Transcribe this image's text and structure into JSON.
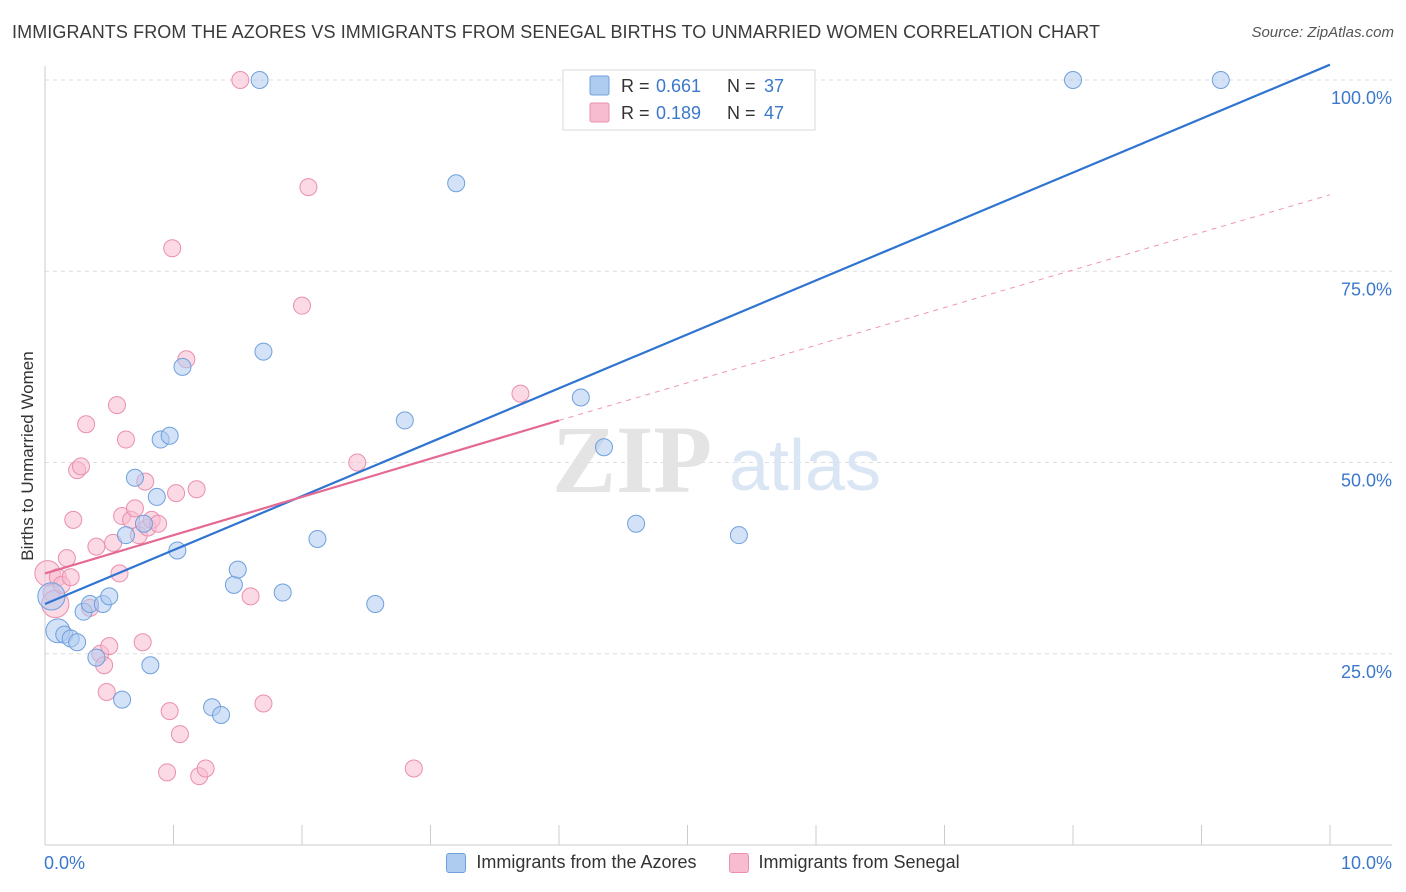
{
  "title": "IMMIGRANTS FROM THE AZORES VS IMMIGRANTS FROM SENEGAL BIRTHS TO UNMARRIED WOMEN CORRELATION CHART",
  "source": "Source: ZipAtlas.com",
  "watermark": {
    "zip": "ZIP",
    "atlas": "atlas"
  },
  "colors": {
    "blue_fill": "#aecbf0",
    "blue_stroke": "#6fa0dc",
    "blue_line": "#2f74d0",
    "pink_fill": "#f8bcd0",
    "pink_stroke": "#ea8fae",
    "pink_line": "#e46a94",
    "axis_text": "#3b78cc",
    "grid": "#dddddd"
  },
  "legend_top": [
    {
      "r_label": "R =",
      "r_value": "0.661",
      "n_label": "N =",
      "n_value": "37"
    },
    {
      "r_label": "R =",
      "r_value": "0.189",
      "n_label": "N =",
      "n_value": "47"
    }
  ],
  "chart_data": {
    "type": "scatter",
    "title": "IMMIGRANTS FROM THE AZORES VS IMMIGRANTS FROM SENEGAL BIRTHS TO UNMARRIED WOMEN CORRELATION CHART",
    "xlabel": "",
    "ylabel": "Births to Unmarried Women",
    "xlim": [
      0,
      10
    ],
    "ylim": [
      0,
      102
    ],
    "x_tick_labels": [
      "0.0%",
      "10.0%"
    ],
    "y_tick_values": [
      25,
      50,
      75,
      100
    ],
    "y_tick_labels": [
      "25.0%",
      "50.0%",
      "75.0%",
      "100.0%"
    ],
    "grid": true,
    "legend_placement": "top-center",
    "series": [
      {
        "name": "Immigrants from the Azores",
        "R": 0.661,
        "N": 37,
        "points": [
          {
            "x": 0.05,
            "y": 32.5,
            "s": 1.6
          },
          {
            "x": 0.1,
            "y": 28,
            "s": 1.4
          },
          {
            "x": 0.15,
            "y": 27.5
          },
          {
            "x": 0.2,
            "y": 27
          },
          {
            "x": 0.25,
            "y": 26.5
          },
          {
            "x": 0.3,
            "y": 30.5
          },
          {
            "x": 0.35,
            "y": 31.5
          },
          {
            "x": 0.4,
            "y": 24.5
          },
          {
            "x": 0.45,
            "y": 31.5
          },
          {
            "x": 0.5,
            "y": 32.5
          },
          {
            "x": 0.6,
            "y": 19
          },
          {
            "x": 0.63,
            "y": 40.5
          },
          {
            "x": 0.7,
            "y": 48
          },
          {
            "x": 0.77,
            "y": 42
          },
          {
            "x": 0.82,
            "y": 23.5
          },
          {
            "x": 0.87,
            "y": 45.5
          },
          {
            "x": 0.9,
            "y": 53
          },
          {
            "x": 0.97,
            "y": 53.5
          },
          {
            "x": 1.03,
            "y": 38.5
          },
          {
            "x": 1.07,
            "y": 62.5
          },
          {
            "x": 1.3,
            "y": 18
          },
          {
            "x": 1.37,
            "y": 17
          },
          {
            "x": 1.47,
            "y": 34
          },
          {
            "x": 1.5,
            "y": 36
          },
          {
            "x": 1.67,
            "y": 100
          },
          {
            "x": 1.7,
            "y": 64.5
          },
          {
            "x": 1.85,
            "y": 33
          },
          {
            "x": 2.12,
            "y": 40
          },
          {
            "x": 2.57,
            "y": 31.5
          },
          {
            "x": 2.8,
            "y": 55.5
          },
          {
            "x": 3.2,
            "y": 86.5
          },
          {
            "x": 4.17,
            "y": 58.5
          },
          {
            "x": 4.35,
            "y": 52
          },
          {
            "x": 4.6,
            "y": 42
          },
          {
            "x": 5.4,
            "y": 40.5
          },
          {
            "x": 8.0,
            "y": 100
          },
          {
            "x": 9.15,
            "y": 100
          }
        ],
        "trend": {
          "x": [
            0,
            10
          ],
          "y": [
            31.5,
            102
          ]
        }
      },
      {
        "name": "Immigrants from Senegal",
        "R": 0.189,
        "N": 47,
        "points": [
          {
            "x": 0.02,
            "y": 35.5,
            "s": 1.5
          },
          {
            "x": 0.05,
            "y": 33
          },
          {
            "x": 0.08,
            "y": 31.5,
            "s": 1.6
          },
          {
            "x": 0.1,
            "y": 35
          },
          {
            "x": 0.13,
            "y": 34
          },
          {
            "x": 0.17,
            "y": 37.5
          },
          {
            "x": 0.2,
            "y": 35
          },
          {
            "x": 0.22,
            "y": 42.5
          },
          {
            "x": 0.25,
            "y": 49
          },
          {
            "x": 0.28,
            "y": 49.5
          },
          {
            "x": 0.32,
            "y": 55
          },
          {
            "x": 0.35,
            "y": 31
          },
          {
            "x": 0.4,
            "y": 39
          },
          {
            "x": 0.43,
            "y": 25
          },
          {
            "x": 0.46,
            "y": 23.5
          },
          {
            "x": 0.48,
            "y": 20
          },
          {
            "x": 0.5,
            "y": 26
          },
          {
            "x": 0.53,
            "y": 39.5
          },
          {
            "x": 0.56,
            "y": 57.5
          },
          {
            "x": 0.58,
            "y": 35.5
          },
          {
            "x": 0.6,
            "y": 43
          },
          {
            "x": 0.63,
            "y": 53
          },
          {
            "x": 0.67,
            "y": 42.5
          },
          {
            "x": 0.7,
            "y": 44
          },
          {
            "x": 0.73,
            "y": 40.5
          },
          {
            "x": 0.76,
            "y": 26.5
          },
          {
            "x": 0.78,
            "y": 47.5
          },
          {
            "x": 0.8,
            "y": 41.5
          },
          {
            "x": 0.83,
            "y": 42.5
          },
          {
            "x": 0.88,
            "y": 42
          },
          {
            "x": 0.95,
            "y": 9.5
          },
          {
            "x": 0.97,
            "y": 17.5
          },
          {
            "x": 0.99,
            "y": 78
          },
          {
            "x": 1.02,
            "y": 46
          },
          {
            "x": 1.05,
            "y": 14.5
          },
          {
            "x": 1.1,
            "y": 63.5
          },
          {
            "x": 1.18,
            "y": 46.5
          },
          {
            "x": 1.2,
            "y": 9
          },
          {
            "x": 1.25,
            "y": 10
          },
          {
            "x": 1.52,
            "y": 100
          },
          {
            "x": 1.6,
            "y": 32.5
          },
          {
            "x": 1.7,
            "y": 18.5
          },
          {
            "x": 2.0,
            "y": 70.5
          },
          {
            "x": 2.05,
            "y": 86
          },
          {
            "x": 2.43,
            "y": 50
          },
          {
            "x": 2.87,
            "y": 10
          },
          {
            "x": 3.7,
            "y": 59
          }
        ],
        "trend": {
          "x": [
            0,
            4.0
          ],
          "y": [
            35.5,
            55.5
          ]
        },
        "trend_extension": {
          "x": [
            4.0,
            10
          ],
          "y": [
            55.5,
            85
          ]
        }
      }
    ]
  }
}
